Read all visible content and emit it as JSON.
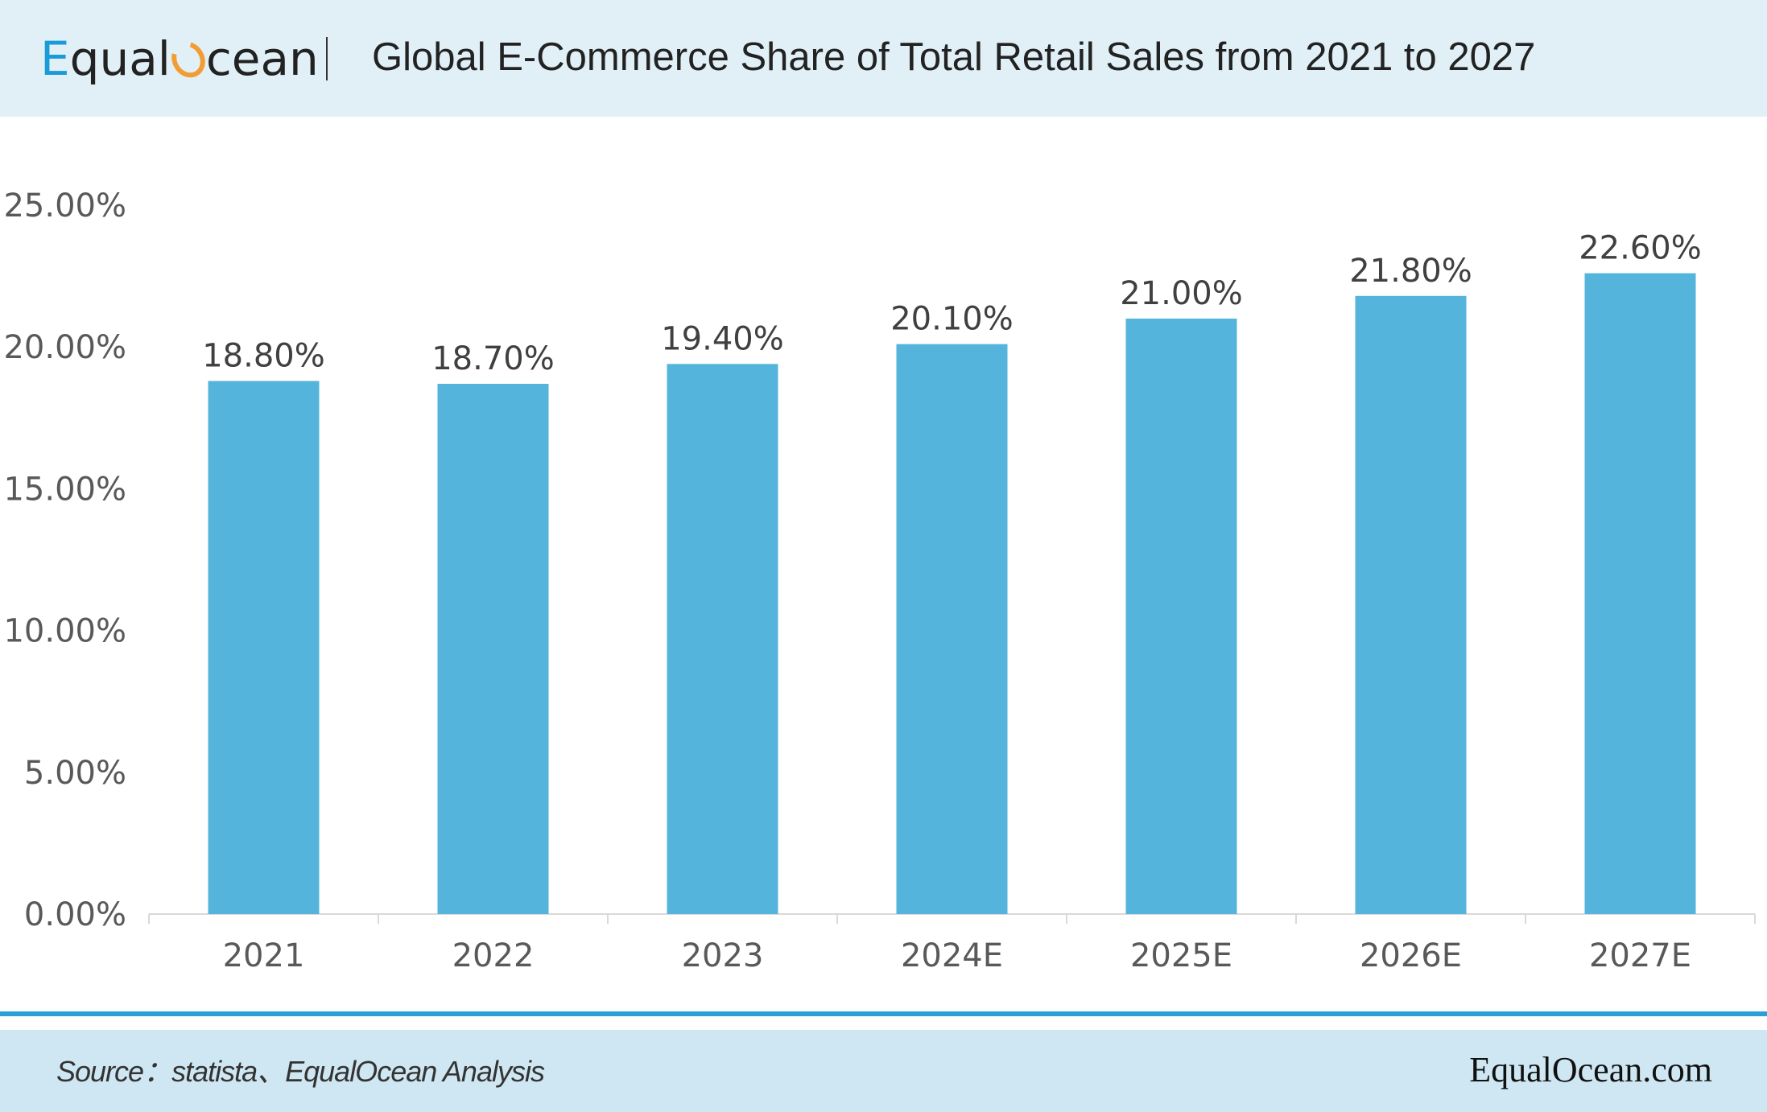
{
  "header": {
    "logo_text_e": "E",
    "logo_text_qual": "qual",
    "logo_text_cean": "cean",
    "title": "Global E-Commerce Share of Total Retail Sales from 2021 to 2027"
  },
  "footer": {
    "source": "Source：statista、EqualOcean Analysis",
    "site": "EqualOcean.com"
  },
  "colors": {
    "bar": "#54b4dc",
    "accent": "#2ba0d8",
    "header_bg": "#e1f0f7",
    "footer_bg": "#cfe7f2"
  },
  "chart_data": {
    "type": "bar",
    "categories": [
      "2021",
      "2022",
      "2023",
      "2024E",
      "2025E",
      "2026E",
      "2027E"
    ],
    "values": [
      18.8,
      18.7,
      19.4,
      20.1,
      21.0,
      21.8,
      22.6
    ],
    "value_labels": [
      "18.80%",
      "18.70%",
      "19.40%",
      "20.10%",
      "21.00%",
      "21.80%",
      "22.60%"
    ],
    "ylim": [
      0,
      25
    ],
    "yticks": [
      0,
      5,
      10,
      15,
      20,
      25
    ],
    "ytick_labels": [
      "0.00%",
      "5.00%",
      "10.00%",
      "15.00%",
      "20.00%",
      "25.00%"
    ],
    "grid": false,
    "legend": "none"
  }
}
